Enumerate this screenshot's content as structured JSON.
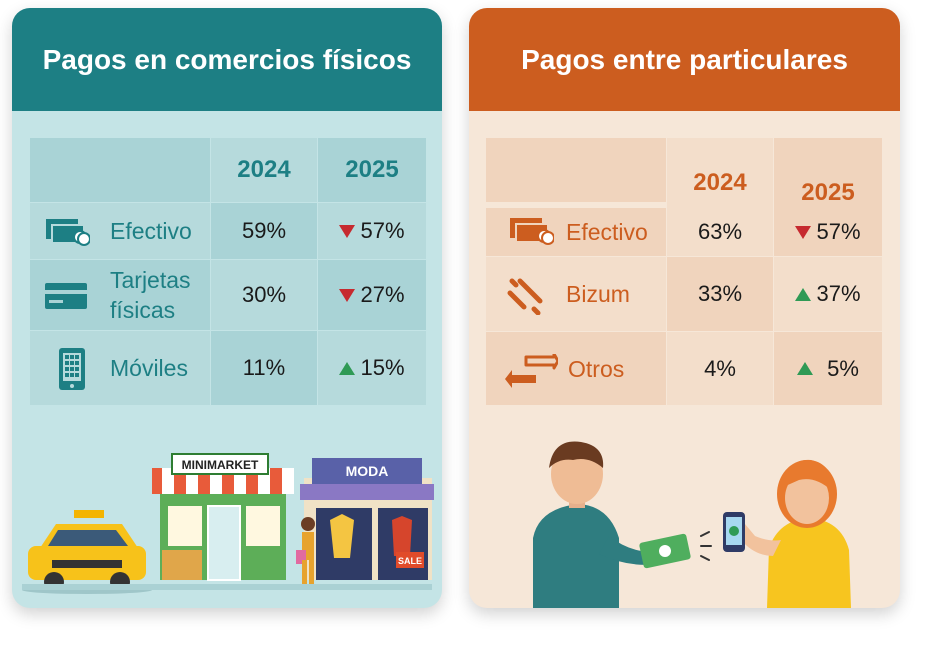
{
  "chart_data": [
    {
      "type": "table",
      "title": "Pagos en comercios físicos",
      "columns": [
        "2024",
        "2025"
      ],
      "rows": [
        {
          "label": "Efectivo",
          "icon": "cash-icon",
          "v2024": "59%",
          "v2025": "57%",
          "trend": "down"
        },
        {
          "label": "Tarjetas físicas",
          "icon": "card-icon",
          "v2024": "30%",
          "v2025": "27%",
          "trend": "down"
        },
        {
          "label": "Móviles",
          "icon": "mobile-icon",
          "v2024": "11%",
          "v2025": "15%",
          "trend": "up"
        }
      ]
    },
    {
      "type": "table",
      "title": "Pagos entre particulares",
      "columns": [
        "2024",
        "2025"
      ],
      "rows": [
        {
          "label": "Efectivo",
          "icon": "cash-icon",
          "v2024": "63%",
          "v2025": "57%",
          "trend": "down"
        },
        {
          "label": "Bizum",
          "icon": "bizum-icon",
          "v2024": "33%",
          "v2025": "37%",
          "trend": "up"
        },
        {
          "label": "Otros",
          "icon": "transfer-icon",
          "v2024": "4%",
          "v2025": "5%",
          "trend": "up"
        }
      ]
    }
  ],
  "colors": {
    "teal": "#1d7f84",
    "orange": "#cc5d1f",
    "down": "#c62a2f",
    "up": "#2f9a55"
  },
  "illustrations": {
    "left": {
      "minimarket_sign": "MINIMARKET",
      "moda_sign": "MODA",
      "sale_tag": "SALE"
    }
  }
}
